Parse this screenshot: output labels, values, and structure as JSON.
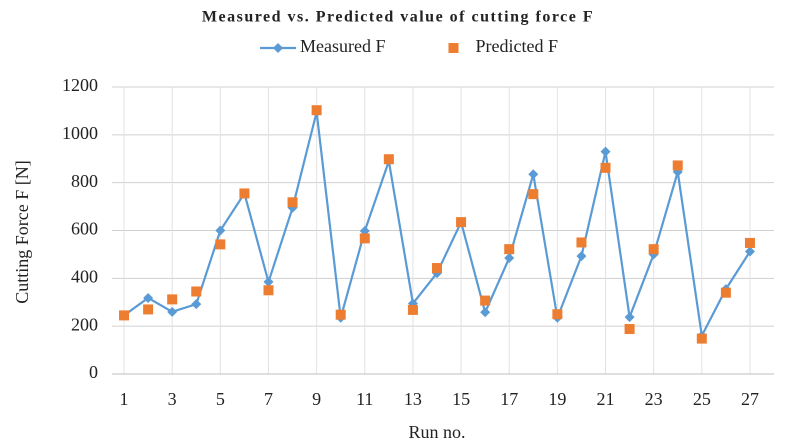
{
  "chart_data": {
    "type": "line",
    "title": "Measured vs. Predicted value of cutting force F",
    "x_label": "Run no.",
    "y_label": "Cutting Force F [N]",
    "x": [
      1,
      2,
      3,
      4,
      5,
      6,
      7,
      8,
      9,
      10,
      11,
      12,
      13,
      14,
      15,
      16,
      17,
      18,
      19,
      20,
      21,
      22,
      23,
      24,
      25,
      26,
      27
    ],
    "series": [
      {
        "name": "Measured F",
        "color": "#5b9bd5",
        "line": true,
        "marker": "diamond",
        "values": [
          245,
          318,
          260,
          292,
          600,
          755,
          385,
          695,
          1095,
          235,
          598,
          890,
          295,
          422,
          635,
          258,
          485,
          835,
          235,
          493,
          930,
          238,
          500,
          845,
          160,
          355,
          512
        ]
      },
      {
        "name": "Predicted F",
        "color": "#ed7d31",
        "line": false,
        "marker": "square",
        "values": [
          245,
          270,
          312,
          345,
          542,
          755,
          350,
          718,
          1103,
          248,
          567,
          898,
          268,
          443,
          635,
          307,
          522,
          752,
          250,
          550,
          862,
          188,
          522,
          872,
          148,
          340,
          548
        ]
      }
    ],
    "xlim": [
      0.5,
      27.5
    ],
    "xticks": [
      1,
      3,
      5,
      7,
      9,
      11,
      13,
      15,
      17,
      19,
      21,
      23,
      25,
      27
    ],
    "ylim": [
      0,
      1200
    ],
    "yticks": [
      0,
      200,
      400,
      600,
      800,
      1000,
      1200
    ],
    "grid": true,
    "legend": "top"
  }
}
